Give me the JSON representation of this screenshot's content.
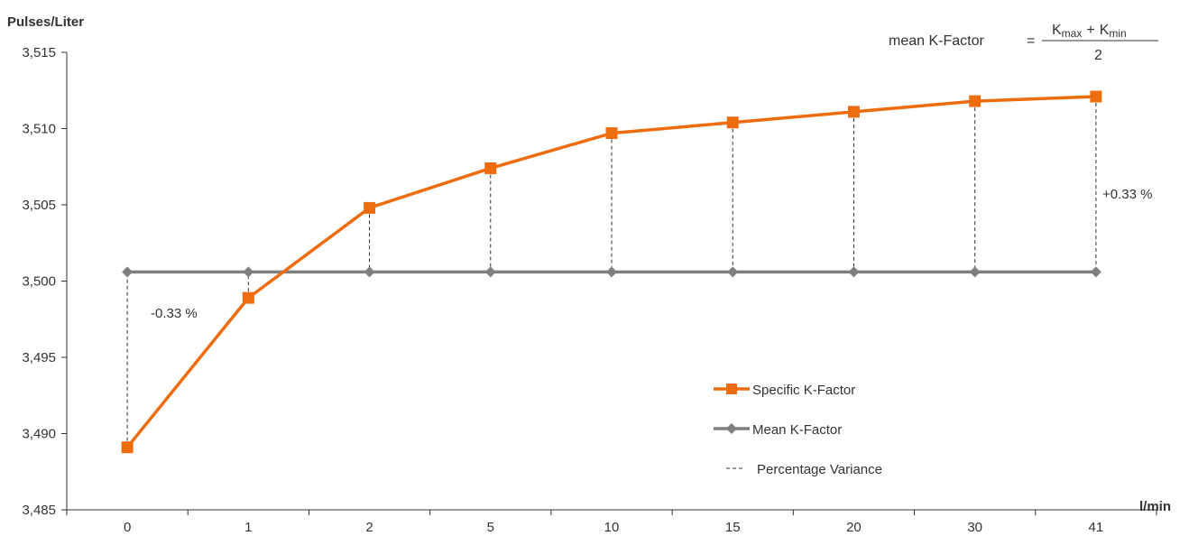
{
  "chart_data": {
    "type": "line",
    "ylabel": "Pulses/Liter",
    "xlabel": "l/min",
    "categories": [
      "0",
      "1",
      "2",
      "5",
      "10",
      "15",
      "20",
      "30",
      "41"
    ],
    "ylim": [
      3.485,
      3.515
    ],
    "yticks": [
      3.485,
      3.49,
      3.495,
      3.5,
      3.505,
      3.51,
      3.515
    ],
    "ytick_labels": [
      "3,485",
      "3,490",
      "3,495",
      "3,500",
      "3,505",
      "3,510",
      "3,515"
    ],
    "grid": false,
    "legend_position": "bottom-right",
    "series": [
      {
        "name": "Specific K-Factor",
        "color": "#ED6D0E",
        "marker": "square",
        "values": [
          3.4891,
          3.4989,
          3.5048,
          3.5074,
          3.5097,
          3.5104,
          3.5111,
          3.5118,
          3.5121
        ]
      },
      {
        "name": "Mean K-Factor",
        "color": "#7F7F7F",
        "marker": "diamond",
        "values": [
          3.5006,
          3.5006,
          3.5006,
          3.5006,
          3.5006,
          3.5006,
          3.5006,
          3.5006,
          3.5006
        ]
      }
    ],
    "variance_legend_label": "Percentage Variance",
    "annotations": {
      "min_variance": "-0.33 %",
      "max_variance": "+0.33 %"
    },
    "formula": {
      "lhs": "mean K-Factor",
      "equals": "=",
      "k1": "K",
      "k1_sub": "max",
      "plus": "+",
      "k2": "K",
      "k2_sub": "min",
      "denominator": "2"
    }
  }
}
